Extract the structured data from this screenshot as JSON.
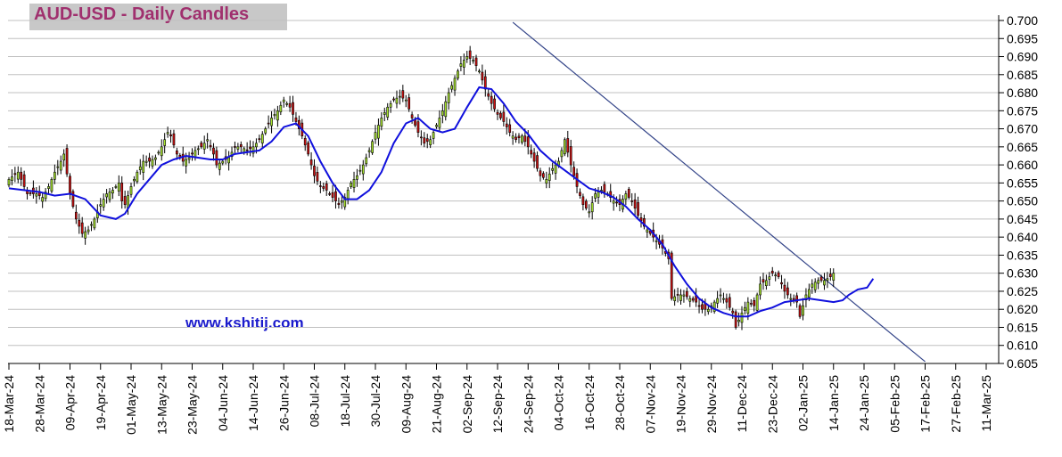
{
  "chart_data": {
    "type": "candlestick",
    "title": "AUD-USD - Daily Candles",
    "annotation": "www.kshitij.com",
    "ylim": [
      0.605,
      0.7
    ],
    "y_ticks": [
      "0.605",
      "0.610",
      "0.615",
      "0.620",
      "0.625",
      "0.630",
      "0.635",
      "0.640",
      "0.645",
      "0.650",
      "0.655",
      "0.660",
      "0.665",
      "0.670",
      "0.675",
      "0.680",
      "0.685",
      "0.690",
      "0.695",
      "0.700"
    ],
    "x_ticks": [
      "18-Mar-24",
      "28-Mar-24",
      "09-Apr-24",
      "19-Apr-24",
      "01-May-24",
      "13-May-24",
      "23-May-24",
      "04-Jun-24",
      "14-Jun-24",
      "26-Jun-24",
      "08-Jul-24",
      "18-Jul-24",
      "30-Jul-24",
      "09-Aug-24",
      "21-Aug-24",
      "02-Sep-24",
      "12-Sep-24",
      "24-Sep-24",
      "04-Oct-24",
      "16-Oct-24",
      "28-Oct-24",
      "07-Nov-24",
      "19-Nov-24",
      "29-Nov-24",
      "11-Dec-24",
      "23-Dec-24",
      "02-Jan-25",
      "14-Jan-25",
      "24-Jan-25",
      "05-Feb-25",
      "17-Feb-25",
      "27-Feb-25",
      "11-Mar-25"
    ],
    "colors": {
      "up": "#a6e22e",
      "down": "#cc1111",
      "moving_average": "#1010dd",
      "trendline": "#334488",
      "grid": "#c0c0c0"
    },
    "close_path": [
      [
        0,
        0.656
      ],
      [
        3,
        0.658
      ],
      [
        6,
        0.652
      ],
      [
        9,
        0.652
      ],
      [
        11,
        0.651
      ],
      [
        13,
        0.654
      ],
      [
        15,
        0.658
      ],
      [
        17,
        0.661
      ],
      [
        18,
        0.663
      ],
      [
        20,
        0.652
      ],
      [
        22,
        0.645
      ],
      [
        24,
        0.641
      ],
      [
        26,
        0.642
      ],
      [
        28,
        0.645
      ],
      [
        30,
        0.649
      ],
      [
        32,
        0.652
      ],
      [
        34,
        0.653
      ],
      [
        36,
        0.655
      ],
      [
        37,
        0.65
      ],
      [
        38,
        0.649
      ],
      [
        40,
        0.654
      ],
      [
        42,
        0.658
      ],
      [
        44,
        0.661
      ],
      [
        46,
        0.661
      ],
      [
        48,
        0.662
      ],
      [
        50,
        0.665
      ],
      [
        52,
        0.669
      ],
      [
        53,
        0.668
      ],
      [
        55,
        0.663
      ],
      [
        57,
        0.661
      ],
      [
        59,
        0.662
      ],
      [
        61,
        0.664
      ],
      [
        63,
        0.665
      ],
      [
        65,
        0.667
      ],
      [
        67,
        0.663
      ],
      [
        68,
        0.66
      ],
      [
        70,
        0.661
      ],
      [
        72,
        0.662
      ],
      [
        74,
        0.665
      ],
      [
        76,
        0.665
      ],
      [
        78,
        0.664
      ],
      [
        80,
        0.665
      ],
      [
        82,
        0.667
      ],
      [
        84,
        0.67
      ],
      [
        86,
        0.673
      ],
      [
        88,
        0.675
      ],
      [
        90,
        0.678
      ],
      [
        92,
        0.676
      ],
      [
        94,
        0.672
      ],
      [
        96,
        0.668
      ],
      [
        98,
        0.663
      ],
      [
        100,
        0.657
      ],
      [
        102,
        0.654
      ],
      [
        104,
        0.653
      ],
      [
        106,
        0.651
      ],
      [
        108,
        0.649
      ],
      [
        110,
        0.651
      ],
      [
        112,
        0.655
      ],
      [
        114,
        0.657
      ],
      [
        116,
        0.66
      ],
      [
        118,
        0.664
      ],
      [
        120,
        0.669
      ],
      [
        122,
        0.673
      ],
      [
        124,
        0.676
      ],
      [
        126,
        0.678
      ],
      [
        128,
        0.679
      ],
      [
        130,
        0.678
      ],
      [
        132,
        0.673
      ],
      [
        134,
        0.669
      ],
      [
        136,
        0.666
      ],
      [
        138,
        0.667
      ],
      [
        140,
        0.671
      ],
      [
        142,
        0.675
      ],
      [
        144,
        0.68
      ],
      [
        146,
        0.684
      ],
      [
        148,
        0.688
      ],
      [
        150,
        0.69
      ],
      [
        152,
        0.689
      ],
      [
        154,
        0.686
      ],
      [
        156,
        0.681
      ],
      [
        158,
        0.677
      ],
      [
        160,
        0.674
      ],
      [
        162,
        0.672
      ],
      [
        164,
        0.669
      ],
      [
        166,
        0.667
      ],
      [
        168,
        0.668
      ],
      [
        170,
        0.665
      ],
      [
        172,
        0.661
      ],
      [
        174,
        0.657
      ],
      [
        176,
        0.656
      ],
      [
        178,
        0.659
      ],
      [
        180,
        0.661
      ],
      [
        182,
        0.667
      ],
      [
        184,
        0.66
      ],
      [
        186,
        0.654
      ],
      [
        188,
        0.649
      ],
      [
        190,
        0.647
      ],
      [
        192,
        0.652
      ],
      [
        194,
        0.653
      ],
      [
        196,
        0.652
      ],
      [
        198,
        0.65
      ],
      [
        200,
        0.649
      ],
      [
        202,
        0.652
      ],
      [
        204,
        0.65
      ],
      [
        206,
        0.646
      ],
      [
        208,
        0.643
      ],
      [
        210,
        0.641
      ],
      [
        212,
        0.639
      ],
      [
        214,
        0.637
      ],
      [
        216,
        0.634
      ],
      [
        217,
        0.623
      ],
      [
        219,
        0.624
      ],
      [
        221,
        0.624
      ],
      [
        223,
        0.623
      ],
      [
        225,
        0.622
      ],
      [
        227,
        0.62
      ],
      [
        229,
        0.62
      ],
      [
        231,
        0.622
      ],
      [
        233,
        0.624
      ],
      [
        235,
        0.622
      ],
      [
        237,
        0.619
      ],
      [
        238,
        0.615
      ],
      [
        240,
        0.619
      ],
      [
        242,
        0.622
      ],
      [
        244,
        0.621
      ],
      [
        246,
        0.627
      ],
      [
        248,
        0.628
      ],
      [
        250,
        0.63
      ],
      [
        252,
        0.629
      ],
      [
        254,
        0.625
      ],
      [
        256,
        0.623
      ],
      [
        258,
        0.622
      ],
      [
        259,
        0.618
      ],
      [
        261,
        0.624
      ],
      [
        263,
        0.627
      ],
      [
        265,
        0.628
      ],
      [
        267,
        0.628
      ],
      [
        269,
        0.629
      ],
      [
        270,
        0.63
      ]
    ],
    "moving_average": [
      [
        0,
        0.6535
      ],
      [
        10,
        0.6525
      ],
      [
        15,
        0.6515
      ],
      [
        20,
        0.652
      ],
      [
        25,
        0.6505
      ],
      [
        30,
        0.646
      ],
      [
        35,
        0.645
      ],
      [
        38,
        0.6465
      ],
      [
        42,
        0.652
      ],
      [
        46,
        0.656
      ],
      [
        50,
        0.66
      ],
      [
        54,
        0.6615
      ],
      [
        58,
        0.6625
      ],
      [
        62,
        0.662
      ],
      [
        66,
        0.6615
      ],
      [
        70,
        0.6615
      ],
      [
        74,
        0.663
      ],
      [
        78,
        0.6635
      ],
      [
        82,
        0.664
      ],
      [
        86,
        0.6665
      ],
      [
        90,
        0.6705
      ],
      [
        94,
        0.6715
      ],
      [
        98,
        0.668
      ],
      [
        102,
        0.661
      ],
      [
        106,
        0.655
      ],
      [
        110,
        0.6505
      ],
      [
        114,
        0.6505
      ],
      [
        118,
        0.653
      ],
      [
        122,
        0.658
      ],
      [
        126,
        0.666
      ],
      [
        130,
        0.6715
      ],
      [
        134,
        0.673
      ],
      [
        138,
        0.67
      ],
      [
        142,
        0.669
      ],
      [
        146,
        0.67
      ],
      [
        150,
        0.676
      ],
      [
        154,
        0.6815
      ],
      [
        158,
        0.681
      ],
      [
        162,
        0.677
      ],
      [
        166,
        0.672
      ],
      [
        170,
        0.6685
      ],
      [
        174,
        0.664
      ],
      [
        178,
        0.661
      ],
      [
        182,
        0.6585
      ],
      [
        186,
        0.656
      ],
      [
        190,
        0.6535
      ],
      [
        194,
        0.6525
      ],
      [
        198,
        0.651
      ],
      [
        202,
        0.6485
      ],
      [
        206,
        0.645
      ],
      [
        210,
        0.642
      ],
      [
        214,
        0.638
      ],
      [
        218,
        0.632
      ],
      [
        222,
        0.627
      ],
      [
        226,
        0.623
      ],
      [
        230,
        0.6205
      ],
      [
        234,
        0.619
      ],
      [
        238,
        0.618
      ],
      [
        242,
        0.618
      ],
      [
        246,
        0.6195
      ],
      [
        250,
        0.6205
      ],
      [
        254,
        0.622
      ],
      [
        258,
        0.6225
      ],
      [
        262,
        0.623
      ],
      [
        266,
        0.6225
      ],
      [
        270,
        0.622
      ],
      [
        273,
        0.6225
      ],
      [
        275,
        0.624
      ],
      [
        278,
        0.6255
      ],
      [
        281,
        0.626
      ],
      [
        283,
        0.6285
      ]
    ],
    "trendline": [
      [
        165,
        0.6995
      ],
      [
        300,
        0.6055
      ]
    ]
  }
}
